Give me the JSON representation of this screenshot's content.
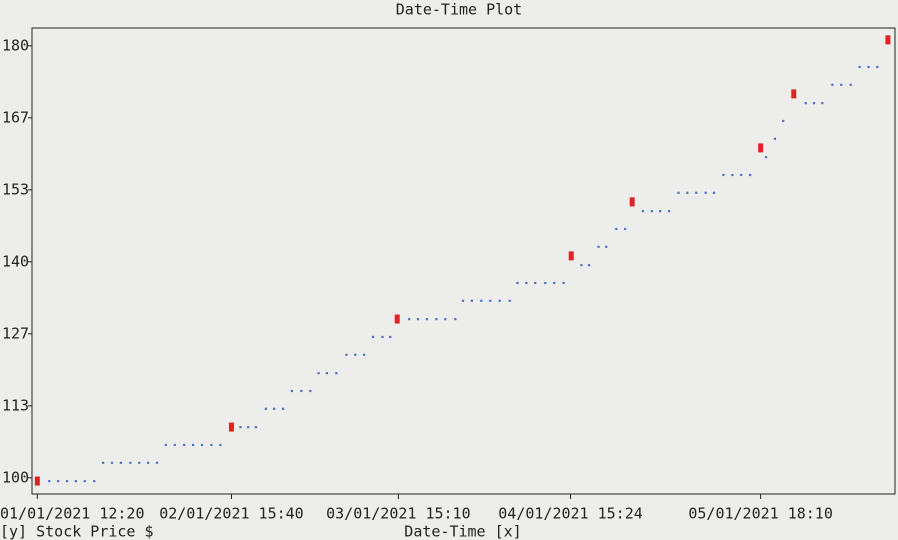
{
  "chart_data": {
    "type": "scatter",
    "title": "Date-Time Plot",
    "x_label": "Date-Time [x]",
    "y_label": "[y] Stock Price $",
    "xlim": [
      "01/01/2021 11:35",
      "06/01/2021 13:05"
    ],
    "xticks": [
      "01/01/2021 12:20",
      "02/01/2021 15:40",
      "03/01/2021 15:10",
      "04/01/2021 15:24",
      "05/01/2021 18:10"
    ],
    "ylim": [
      97.0,
      183.3
    ],
    "yticks": [
      100,
      {
        "value": 113.33,
        "label": "113"
      },
      {
        "value": 126.67,
        "label": "127"
      },
      140,
      {
        "value": 153.33,
        "label": "153"
      },
      {
        "value": 166.67,
        "label": "167"
      },
      180
    ],
    "series": [
      {
        "color": "#4a72c8",
        "marker": "dot",
        "x": [
          "01/01/2021 14:00",
          "01/01/2021 15:15",
          "01/01/2021 16:30",
          "01/01/2021 17:45",
          "01/01/2021 19:00",
          "01/01/2021 20:20",
          "01/01/2021 21:35",
          "01/01/2021 22:50",
          "02/01/2021 00:05",
          "02/01/2021 01:25",
          "02/01/2021 02:40",
          "02/01/2021 03:55",
          "02/01/2021 05:10",
          "02/01/2021 06:25",
          "02/01/2021 07:40",
          "02/01/2021 09:00",
          "02/01/2021 10:15",
          "02/01/2021 11:30",
          "02/01/2021 12:50",
          "02/01/2021 14:05",
          "02/01/2021 16:55",
          "02/01/2021 18:00",
          "02/01/2021 19:05",
          "02/01/2021 20:30",
          "02/01/2021 21:40",
          "02/01/2021 22:55",
          "03/01/2021 00:10",
          "03/01/2021 01:30",
          "03/01/2021 02:45",
          "03/01/2021 03:55",
          "03/01/2021 05:05",
          "03/01/2021 06:25",
          "03/01/2021 07:50",
          "03/01/2021 09:05",
          "03/01/2021 10:20",
          "03/01/2021 11:35",
          "03/01/2021 12:55",
          "03/01/2021 14:00",
          "03/01/2021 16:40",
          "03/01/2021 17:55",
          "03/01/2021 19:10",
          "03/01/2021 20:30",
          "03/01/2021 21:45",
          "03/01/2021 23:10",
          "04/01/2021 00:15",
          "04/01/2021 01:30",
          "04/01/2021 02:50",
          "04/01/2021 04:05",
          "04/01/2021 05:25",
          "04/01/2021 06:50",
          "04/01/2021 07:55",
          "04/01/2021 09:10",
          "04/01/2021 10:25",
          "04/01/2021 11:50",
          "04/01/2021 13:05",
          "04/01/2021 14:25",
          "04/01/2021 16:55",
          "04/01/2021 18:00",
          "04/01/2021 19:20",
          "04/01/2021 20:25",
          "04/01/2021 21:50",
          "04/01/2021 23:05",
          "05/01/2021 01:35",
          "05/01/2021 02:50",
          "05/01/2021 04:00",
          "05/01/2021 05:15",
          "05/01/2021 06:35",
          "05/01/2021 07:50",
          "05/01/2021 09:05",
          "05/01/2021 10:25",
          "05/01/2021 11:35",
          "05/01/2021 12:55",
          "05/01/2021 14:10",
          "05/01/2021 15:25",
          "05/01/2021 16:40",
          "05/01/2021 18:55",
          "05/01/2021 20:10",
          "05/01/2021 21:20",
          "06/01/2021 00:30",
          "06/01/2021 01:40",
          "06/01/2021 02:50",
          "06/01/2021 04:15",
          "06/01/2021 05:30",
          "06/01/2021 06:50",
          "06/01/2021 08:05",
          "06/01/2021 09:20",
          "06/01/2021 10:35"
        ],
        "values": [
          99.4,
          99.4,
          99.4,
          99.4,
          99.4,
          99.4,
          102.8,
          102.8,
          102.8,
          102.8,
          102.8,
          102.8,
          102.8,
          106.1,
          106.1,
          106.1,
          106.1,
          106.1,
          106.1,
          106.1,
          109.4,
          109.4,
          109.4,
          112.8,
          112.8,
          112.8,
          116.1,
          116.1,
          116.1,
          119.4,
          119.4,
          119.4,
          122.8,
          122.8,
          122.8,
          126.1,
          126.1,
          126.1,
          129.4,
          129.4,
          129.4,
          129.4,
          129.4,
          129.4,
          132.8,
          132.8,
          132.8,
          132.8,
          132.8,
          132.8,
          136.1,
          136.1,
          136.1,
          136.1,
          136.1,
          136.1,
          139.4,
          139.4,
          142.8,
          142.8,
          146.1,
          146.1,
          149.4,
          149.4,
          149.4,
          149.4,
          152.8,
          152.8,
          152.8,
          152.8,
          152.8,
          156.1,
          156.1,
          156.1,
          156.1,
          159.4,
          162.8,
          166.1,
          169.4,
          169.4,
          169.4,
          172.8,
          172.8,
          172.8,
          176.1,
          176.1,
          176.1
        ]
      },
      {
        "color": "#e02424",
        "marker": "block",
        "x": [
          "01/01/2021 12:20",
          "02/01/2021 15:40",
          "03/01/2021 15:00",
          "04/01/2021 15:30",
          "05/01/2021 00:05",
          "05/01/2021 18:10",
          "05/01/2021 22:50",
          "06/01/2021 12:05"
        ],
        "values": [
          99.4,
          109.4,
          129.4,
          141.1,
          151.1,
          161.1,
          171.1,
          181.1
        ]
      }
    ]
  }
}
